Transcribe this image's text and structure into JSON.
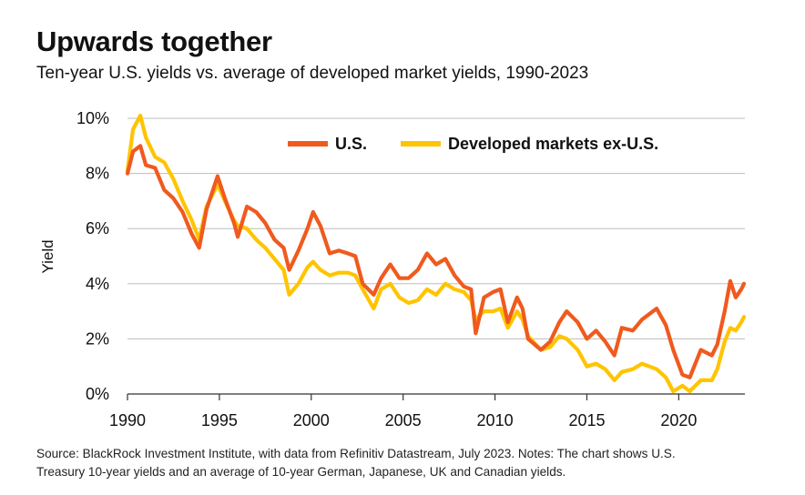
{
  "title": "Upwards together",
  "subtitle": "Ten-year U.S. yields vs. average of developed market yields, 1990-2023",
  "source_line1": "Source: BlackRock Investment Institute, with data from Refinitiv Datastream, July 2023. Notes: The chart shows U.S.",
  "source_line2": "Treasury 10-year yields and an average of 10-year German, Japanese, UK and Canadian yields.",
  "chart_data": {
    "type": "line",
    "title": "Upwards together",
    "ylabel": "Yield",
    "xlabel": "",
    "xlim": [
      1990,
      2023.6
    ],
    "ylim": [
      0,
      10
    ],
    "x_ticks": [
      1990,
      1995,
      2000,
      2005,
      2010,
      2015,
      2020
    ],
    "x_tick_labels": [
      "1990",
      "1995",
      "2000",
      "2005",
      "2010",
      "2015",
      "2020"
    ],
    "y_ticks": [
      0,
      2,
      4,
      6,
      8,
      10
    ],
    "y_tick_labels": [
      "0%",
      "2%",
      "4%",
      "6%",
      "8%",
      "10%"
    ],
    "grid": "horizontal",
    "legend_position": "top-right",
    "series": [
      {
        "name": "U.S.",
        "color": "#f05a1e",
        "points": [
          [
            1990,
            8.0
          ],
          [
            1990.3,
            8.8
          ],
          [
            1990.7,
            9.0
          ],
          [
            1991,
            8.3
          ],
          [
            1991.5,
            8.2
          ],
          [
            1992,
            7.4
          ],
          [
            1992.5,
            7.1
          ],
          [
            1993,
            6.6
          ],
          [
            1993.5,
            5.8
          ],
          [
            1993.9,
            5.3
          ],
          [
            1994.3,
            6.7
          ],
          [
            1994.9,
            7.9
          ],
          [
            1995.3,
            7.1
          ],
          [
            1995.8,
            6.2
          ],
          [
            1996,
            5.7
          ],
          [
            1996.5,
            6.8
          ],
          [
            1997,
            6.6
          ],
          [
            1997.5,
            6.2
          ],
          [
            1998,
            5.6
          ],
          [
            1998.5,
            5.3
          ],
          [
            1998.8,
            4.5
          ],
          [
            1999.3,
            5.2
          ],
          [
            1999.8,
            6.0
          ],
          [
            2000.1,
            6.6
          ],
          [
            2000.5,
            6.1
          ],
          [
            2001,
            5.1
          ],
          [
            2001.5,
            5.2
          ],
          [
            2002,
            5.1
          ],
          [
            2002.4,
            5.0
          ],
          [
            2002.8,
            4.0
          ],
          [
            2003.4,
            3.6
          ],
          [
            2003.8,
            4.2
          ],
          [
            2004.3,
            4.7
          ],
          [
            2004.8,
            4.2
          ],
          [
            2005.3,
            4.2
          ],
          [
            2005.8,
            4.5
          ],
          [
            2006.3,
            5.1
          ],
          [
            2006.8,
            4.7
          ],
          [
            2007.3,
            4.9
          ],
          [
            2007.8,
            4.3
          ],
          [
            2008.3,
            3.9
          ],
          [
            2008.7,
            3.8
          ],
          [
            2008.95,
            2.2
          ],
          [
            2009.4,
            3.5
          ],
          [
            2009.9,
            3.7
          ],
          [
            2010.3,
            3.8
          ],
          [
            2010.7,
            2.6
          ],
          [
            2011.2,
            3.5
          ],
          [
            2011.5,
            3.1
          ],
          [
            2011.8,
            2.0
          ],
          [
            2012.5,
            1.6
          ],
          [
            2013,
            1.9
          ],
          [
            2013.5,
            2.6
          ],
          [
            2013.9,
            3.0
          ],
          [
            2014.5,
            2.6
          ],
          [
            2015,
            2.0
          ],
          [
            2015.5,
            2.3
          ],
          [
            2016,
            1.9
          ],
          [
            2016.5,
            1.4
          ],
          [
            2016.9,
            2.4
          ],
          [
            2017.5,
            2.3
          ],
          [
            2018,
            2.7
          ],
          [
            2018.8,
            3.1
          ],
          [
            2019.3,
            2.5
          ],
          [
            2019.7,
            1.6
          ],
          [
            2020.2,
            0.7
          ],
          [
            2020.6,
            0.6
          ],
          [
            2021.2,
            1.6
          ],
          [
            2021.8,
            1.4
          ],
          [
            2022.1,
            1.8
          ],
          [
            2022.5,
            3.0
          ],
          [
            2022.8,
            4.1
          ],
          [
            2023.1,
            3.5
          ],
          [
            2023.4,
            3.8
          ],
          [
            2023.55,
            4.0
          ]
        ]
      },
      {
        "name": "Developed markets ex-U.S.",
        "color": "#ffc400",
        "points": [
          [
            1990,
            8.1
          ],
          [
            1990.3,
            9.6
          ],
          [
            1990.7,
            10.1
          ],
          [
            1991,
            9.3
          ],
          [
            1991.5,
            8.6
          ],
          [
            1992,
            8.4
          ],
          [
            1992.5,
            7.8
          ],
          [
            1993,
            7.0
          ],
          [
            1993.5,
            6.3
          ],
          [
            1993.9,
            5.6
          ],
          [
            1994.3,
            6.8
          ],
          [
            1994.9,
            7.6
          ],
          [
            1995.3,
            7.0
          ],
          [
            1995.8,
            6.3
          ],
          [
            1996,
            6.1
          ],
          [
            1996.5,
            6.0
          ],
          [
            1997,
            5.6
          ],
          [
            1997.5,
            5.3
          ],
          [
            1998,
            4.9
          ],
          [
            1998.5,
            4.5
          ],
          [
            1998.8,
            3.6
          ],
          [
            1999.3,
            4.0
          ],
          [
            1999.8,
            4.6
          ],
          [
            2000.1,
            4.8
          ],
          [
            2000.5,
            4.5
          ],
          [
            2001,
            4.3
          ],
          [
            2001.5,
            4.4
          ],
          [
            2002,
            4.4
          ],
          [
            2002.4,
            4.3
          ],
          [
            2002.8,
            3.8
          ],
          [
            2003.4,
            3.1
          ],
          [
            2003.8,
            3.8
          ],
          [
            2004.3,
            4.0
          ],
          [
            2004.8,
            3.5
          ],
          [
            2005.3,
            3.3
          ],
          [
            2005.8,
            3.4
          ],
          [
            2006.3,
            3.8
          ],
          [
            2006.8,
            3.6
          ],
          [
            2007.3,
            4.0
          ],
          [
            2007.8,
            3.8
          ],
          [
            2008.3,
            3.7
          ],
          [
            2008.7,
            3.4
          ],
          [
            2008.95,
            2.7
          ],
          [
            2009.4,
            3.0
          ],
          [
            2009.9,
            3.0
          ],
          [
            2010.3,
            3.1
          ],
          [
            2010.7,
            2.4
          ],
          [
            2011.2,
            3.0
          ],
          [
            2011.5,
            2.7
          ],
          [
            2011.8,
            2.1
          ],
          [
            2012.5,
            1.6
          ],
          [
            2013,
            1.7
          ],
          [
            2013.5,
            2.1
          ],
          [
            2013.9,
            2.0
          ],
          [
            2014.5,
            1.6
          ],
          [
            2015,
            1.0
          ],
          [
            2015.5,
            1.1
          ],
          [
            2016,
            0.9
          ],
          [
            2016.5,
            0.5
          ],
          [
            2016.9,
            0.8
          ],
          [
            2017.5,
            0.9
          ],
          [
            2018,
            1.1
          ],
          [
            2018.8,
            0.9
          ],
          [
            2019.3,
            0.6
          ],
          [
            2019.7,
            0.1
          ],
          [
            2020.2,
            0.3
          ],
          [
            2020.6,
            0.1
          ],
          [
            2021.2,
            0.5
          ],
          [
            2021.8,
            0.5
          ],
          [
            2022.1,
            0.9
          ],
          [
            2022.5,
            1.9
          ],
          [
            2022.8,
            2.4
          ],
          [
            2023.1,
            2.3
          ],
          [
            2023.4,
            2.6
          ],
          [
            2023.55,
            2.8
          ]
        ]
      }
    ]
  }
}
